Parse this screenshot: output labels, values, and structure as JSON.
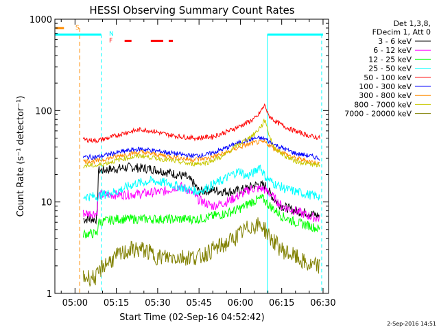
{
  "chart_data": {
    "type": "line",
    "title": "HESSI Observing Summary Count Rates",
    "xlabel": "Start Time (02-Sep-16 04:52:42)",
    "ylabel": "Count Rate (s⁻¹ detector⁻¹)",
    "yscale": "log",
    "ylim": [
      1,
      1000
    ],
    "xlim_minutes": [
      292.7,
      392.0
    ],
    "x_ticks": [
      {
        "label": "05:00",
        "min": 300
      },
      {
        "label": "05:15",
        "min": 315
      },
      {
        "label": "05:30",
        "min": 330
      },
      {
        "label": "05:45",
        "min": 345
      },
      {
        "label": "06:00",
        "min": 360
      },
      {
        "label": "06:15",
        "min": 375
      },
      {
        "label": "06:30",
        "min": 390
      }
    ],
    "y_ticks": [
      {
        "label": "1",
        "v": 1
      },
      {
        "label": "10",
        "v": 10
      },
      {
        "label": "100",
        "v": 100
      },
      {
        "label": "1000",
        "v": 1000
      }
    ],
    "legend_header": [
      "Det 1,3,8,",
      "FDecim 1, Att 0"
    ],
    "legend_position": "right",
    "timestamp": "2-Sep-2016 14:51",
    "markers": {
      "S": "S",
      "N": "N",
      "F": "F"
    },
    "series": [
      {
        "name": "3 - 6 keV",
        "color": "#000000",
        "keypoints": [
          [
            303,
            6.5
          ],
          [
            308,
            6.5
          ],
          [
            308.5,
            22
          ],
          [
            320,
            24
          ],
          [
            328,
            23
          ],
          [
            334,
            21
          ],
          [
            340,
            19
          ],
          [
            343,
            16
          ],
          [
            345,
            13
          ],
          [
            350,
            13.5
          ],
          [
            354,
            13
          ],
          [
            358,
            13
          ],
          [
            362,
            14
          ],
          [
            366,
            15.5
          ],
          [
            369,
            15
          ],
          [
            372,
            11
          ],
          [
            375,
            9
          ],
          [
            380,
            8
          ],
          [
            385,
            7.5
          ],
          [
            389,
            7
          ]
        ]
      },
      {
        "name": "6 - 12 keV",
        "color": "#ff00ff",
        "keypoints": [
          [
            303,
            7.5
          ],
          [
            308,
            7.5
          ],
          [
            308.5,
            12
          ],
          [
            318,
            12
          ],
          [
            326,
            12.5
          ],
          [
            332,
            13
          ],
          [
            338,
            15
          ],
          [
            342,
            13
          ],
          [
            345,
            10.5
          ],
          [
            350,
            9
          ],
          [
            355,
            10
          ],
          [
            360,
            12
          ],
          [
            364,
            14
          ],
          [
            368,
            14
          ],
          [
            370,
            13
          ],
          [
            375,
            9
          ],
          [
            380,
            8
          ],
          [
            385,
            7
          ],
          [
            389,
            6.5
          ]
        ]
      },
      {
        "name": "12 - 25 keV",
        "color": "#00ff00",
        "keypoints": [
          [
            303,
            4.5
          ],
          [
            308,
            4.5
          ],
          [
            308.5,
            6
          ],
          [
            315,
            6.5
          ],
          [
            322,
            6.5
          ],
          [
            330,
            6.5
          ],
          [
            340,
            6.5
          ],
          [
            345,
            6.5
          ],
          [
            350,
            7
          ],
          [
            355,
            7.5
          ],
          [
            360,
            8.5
          ],
          [
            364,
            10
          ],
          [
            368,
            11
          ],
          [
            370,
            9.5
          ],
          [
            375,
            7
          ],
          [
            380,
            6
          ],
          [
            385,
            5.5
          ],
          [
            389,
            5
          ]
        ]
      },
      {
        "name": "25 - 50 keV",
        "color": "#00ffff",
        "keypoints": [
          [
            303,
            11.5
          ],
          [
            308,
            11.5
          ],
          [
            310,
            12
          ],
          [
            315,
            13
          ],
          [
            322,
            16
          ],
          [
            328,
            17
          ],
          [
            334,
            16
          ],
          [
            340,
            14
          ],
          [
            345,
            13
          ],
          [
            349,
            15
          ],
          [
            353,
            17
          ],
          [
            357,
            20
          ],
          [
            360,
            22
          ],
          [
            362,
            19
          ],
          [
            365,
            21
          ],
          [
            367,
            25
          ],
          [
            369,
            19
          ],
          [
            372,
            16
          ],
          [
            376,
            14
          ],
          [
            380,
            13
          ],
          [
            385,
            12
          ],
          [
            389,
            11.5
          ]
        ]
      },
      {
        "name": "50 - 100 keV",
        "color": "#ff0000",
        "keypoints": [
          [
            303,
            48
          ],
          [
            308,
            47
          ],
          [
            312,
            50
          ],
          [
            318,
            57
          ],
          [
            324,
            62
          ],
          [
            328,
            60
          ],
          [
            333,
            55
          ],
          [
            338,
            52
          ],
          [
            344,
            50
          ],
          [
            350,
            52
          ],
          [
            356,
            60
          ],
          [
            360,
            68
          ],
          [
            364,
            78
          ],
          [
            366,
            85
          ],
          [
            368,
            105
          ],
          [
            369,
            115
          ],
          [
            370,
            90
          ],
          [
            373,
            75
          ],
          [
            377,
            65
          ],
          [
            381,
            58
          ],
          [
            385,
            53
          ],
          [
            389,
            50
          ]
        ]
      },
      {
        "name": "100 - 300 keV",
        "color": "#0000ff",
        "keypoints": [
          [
            303,
            31
          ],
          [
            308,
            31
          ],
          [
            312,
            33
          ],
          [
            318,
            36
          ],
          [
            324,
            38
          ],
          [
            330,
            36
          ],
          [
            336,
            34
          ],
          [
            342,
            32
          ],
          [
            348,
            33
          ],
          [
            354,
            38
          ],
          [
            358,
            43
          ],
          [
            362,
            47
          ],
          [
            366,
            50
          ],
          [
            369,
            49
          ],
          [
            372,
            43
          ],
          [
            376,
            38
          ],
          [
            380,
            34
          ],
          [
            385,
            32
          ],
          [
            389,
            30
          ]
        ]
      },
      {
        "name": "300 - 800 keV",
        "color": "#ff8c00",
        "keypoints": [
          [
            303,
            28
          ],
          [
            308,
            28
          ],
          [
            312,
            30
          ],
          [
            318,
            33
          ],
          [
            324,
            35
          ],
          [
            330,
            33
          ],
          [
            336,
            31
          ],
          [
            342,
            29
          ],
          [
            348,
            30
          ],
          [
            354,
            34
          ],
          [
            358,
            38
          ],
          [
            362,
            42
          ],
          [
            366,
            45
          ],
          [
            369,
            45
          ],
          [
            372,
            39
          ],
          [
            376,
            34
          ],
          [
            380,
            30
          ],
          [
            385,
            28
          ],
          [
            389,
            26
          ]
        ]
      },
      {
        "name": "800 - 7000 keV",
        "color": "#c8c800",
        "keypoints": [
          [
            303,
            25
          ],
          [
            308,
            25
          ],
          [
            312,
            27
          ],
          [
            318,
            30
          ],
          [
            324,
            32
          ],
          [
            330,
            30
          ],
          [
            336,
            28
          ],
          [
            342,
            26
          ],
          [
            348,
            27
          ],
          [
            354,
            32
          ],
          [
            358,
            40
          ],
          [
            362,
            48
          ],
          [
            365,
            55
          ],
          [
            368,
            70
          ],
          [
            369,
            80
          ],
          [
            370,
            60
          ],
          [
            372,
            40
          ],
          [
            376,
            32
          ],
          [
            380,
            28
          ],
          [
            385,
            26
          ],
          [
            389,
            25
          ]
        ]
      },
      {
        "name": "7000 - 20000 keV",
        "color": "#808000",
        "keypoints": [
          [
            303,
            1.5
          ],
          [
            308,
            1.5
          ],
          [
            310,
            2
          ],
          [
            315,
            2.5
          ],
          [
            320,
            3
          ],
          [
            325,
            3
          ],
          [
            330,
            2.5
          ],
          [
            335,
            2.5
          ],
          [
            340,
            2.5
          ],
          [
            345,
            2.5
          ],
          [
            350,
            3
          ],
          [
            355,
            3.5
          ],
          [
            360,
            4.5
          ],
          [
            364,
            5.5
          ],
          [
            368,
            5.5
          ],
          [
            371,
            4
          ],
          [
            375,
            3
          ],
          [
            380,
            2.5
          ],
          [
            385,
            2
          ],
          [
            389,
            2
          ]
        ]
      }
    ],
    "attenuator_line": {
      "color": "#ff8c00",
      "y": 800,
      "ranges": [
        [
          293,
          296
        ]
      ],
      "vline_min": 301.7
    },
    "night_line": {
      "color": "#00ffff",
      "y": 680,
      "ranges": [
        [
          292.8,
          309.5
        ],
        [
          369.8,
          390
        ]
      ],
      "vlines_min": [
        309.5,
        369.8,
        389.5
      ]
    },
    "flare_line": {
      "color": "#ff0000",
      "y": 580,
      "ranges": [
        [
          318,
          320.5
        ],
        [
          327.5,
          332
        ],
        [
          334,
          335.5
        ]
      ]
    }
  }
}
